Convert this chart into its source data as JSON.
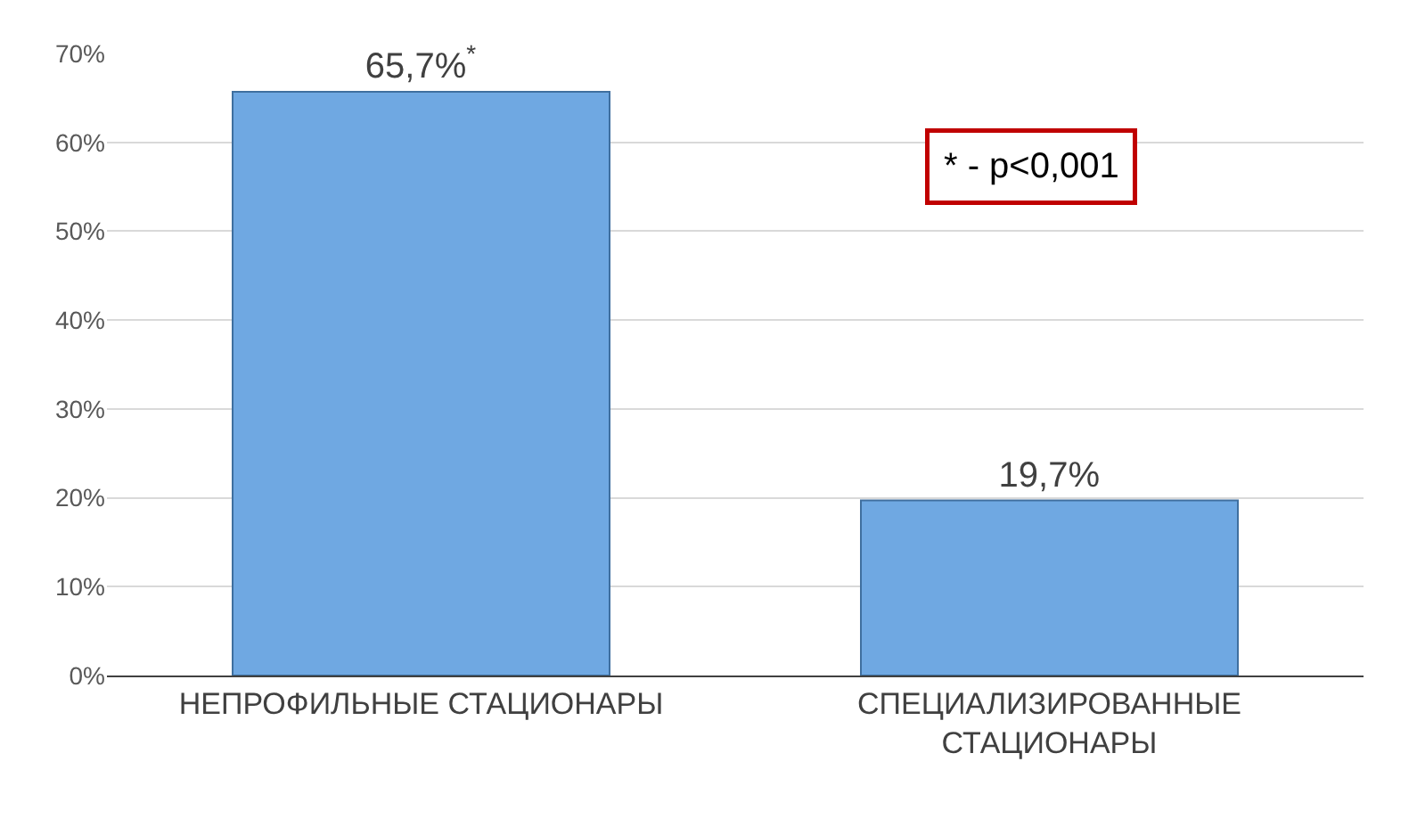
{
  "chart_data": {
    "type": "bar",
    "categories": [
      "НЕПРОФИЛЬНЫЕ СТАЦИОНАРЫ",
      "СПЕЦИАЛИЗИРОВАННЫЕ СТАЦИОНАРЫ"
    ],
    "values": [
      65.7,
      19.7
    ],
    "value_labels": [
      "65,7%$^{*}$",
      "19,7%"
    ],
    "color": "#6fa8e2",
    "ylim": [
      0,
      70
    ],
    "yticks": [
      {
        "value": 0,
        "label": "0%"
      },
      {
        "value": 10,
        "label": "10%"
      },
      {
        "value": 20,
        "label": "20%"
      },
      {
        "value": 30,
        "label": "30%"
      },
      {
        "value": 40,
        "label": "40%"
      },
      {
        "value": 50,
        "label": "50%"
      },
      {
        "value": 60,
        "label": "60%"
      },
      {
        "value": 70,
        "label": "70%"
      }
    ],
    "grid": "y",
    "annotations": [
      "* - p<0,001"
    ]
  }
}
